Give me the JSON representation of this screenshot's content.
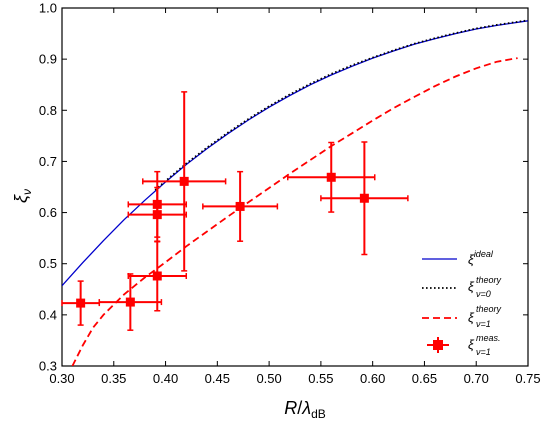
{
  "chart_data": {
    "type": "line",
    "xlabel": "R/λdB",
    "xlabel_main": "R",
    "xlabel_sep": "/",
    "xlabel_lambda": "λ",
    "xlabel_sub": "dB",
    "ylabel": "ξν",
    "ylabel_main": "ξ",
    "ylabel_sub": "ν",
    "xlim": [
      0.3,
      0.75
    ],
    "ylim": [
      0.3,
      1.0
    ],
    "x_ticks": [
      "0.30",
      "0.35",
      "0.40",
      "0.45",
      "0.50",
      "0.55",
      "0.60",
      "0.65",
      "0.70",
      "0.75"
    ],
    "y_ticks": [
      "0.3",
      "0.4",
      "0.5",
      "0.6",
      "0.7",
      "0.8",
      "0.9",
      "1.0"
    ],
    "grid": false,
    "legend_position": "bottom-right",
    "colors": {
      "ideal": "#0000cc",
      "theory_nu0": "#000000",
      "theory_nu1": "#ff0000",
      "measured": "#ff0000"
    },
    "series": [
      {
        "name": "ξ ideal",
        "legend_main": "ξ",
        "legend_sup": "ideal",
        "legend_sub": "",
        "style": "solid",
        "x": [
          0.3,
          0.32,
          0.34,
          0.36,
          0.38,
          0.4,
          0.42,
          0.44,
          0.46,
          0.48,
          0.5,
          0.52,
          0.54,
          0.56,
          0.58,
          0.6,
          0.62,
          0.64,
          0.66,
          0.68,
          0.7,
          0.72,
          0.75
        ],
        "y": [
          0.457,
          0.502,
          0.545,
          0.586,
          0.624,
          0.66,
          0.694,
          0.725,
          0.754,
          0.781,
          0.806,
          0.829,
          0.85,
          0.869,
          0.886,
          0.902,
          0.916,
          0.929,
          0.94,
          0.95,
          0.959,
          0.966,
          0.975
        ]
      },
      {
        "name": "ξ theory ν=0",
        "legend_main": "ξ",
        "legend_sup": "theory",
        "legend_sub": "ν=0",
        "style": "dotted",
        "x": [
          0.39,
          0.4,
          0.42,
          0.44,
          0.46,
          0.48,
          0.5,
          0.52,
          0.54,
          0.56,
          0.58,
          0.6,
          0.62,
          0.64,
          0.66,
          0.68,
          0.7,
          0.72,
          0.75
        ],
        "y": [
          0.644,
          0.662,
          0.696,
          0.727,
          0.756,
          0.783,
          0.808,
          0.831,
          0.852,
          0.871,
          0.888,
          0.903,
          0.917,
          0.93,
          0.941,
          0.951,
          0.96,
          0.967,
          0.976
        ]
      },
      {
        "name": "ξ theory ν=1",
        "legend_main": "ξ",
        "legend_sup": "theory",
        "legend_sub": "ν=1",
        "style": "dashed",
        "x": [
          0.31,
          0.32,
          0.33,
          0.34,
          0.36,
          0.38,
          0.4,
          0.42,
          0.44,
          0.46,
          0.48,
          0.5,
          0.52,
          0.54,
          0.56,
          0.58,
          0.6,
          0.62,
          0.64,
          0.66,
          0.68,
          0.7,
          0.72,
          0.74
        ],
        "y": [
          0.3,
          0.34,
          0.375,
          0.4,
          0.44,
          0.473,
          0.503,
          0.534,
          0.563,
          0.592,
          0.62,
          0.648,
          0.676,
          0.703,
          0.73,
          0.755,
          0.78,
          0.804,
          0.826,
          0.847,
          0.866,
          0.882,
          0.895,
          0.902
        ]
      }
    ],
    "measured": {
      "name": "ξ meas. ν=1",
      "legend_main": "ξ",
      "legend_sup": "meas.",
      "legend_sub": "ν=1",
      "points": [
        {
          "x": 0.318,
          "y": 0.423,
          "xerr": 0.018,
          "yerr": 0.043
        },
        {
          "x": 0.366,
          "y": 0.425,
          "xerr": 0.03,
          "yerr": 0.055
        },
        {
          "x": 0.392,
          "y": 0.476,
          "xerr": 0.028,
          "yerr": 0.068
        },
        {
          "x": 0.392,
          "y": 0.596,
          "xerr": 0.028,
          "yerr": 0.053
        },
        {
          "x": 0.392,
          "y": 0.616,
          "xerr": 0.028,
          "yerr": 0.064
        },
        {
          "x": 0.418,
          "y": 0.661,
          "xerr": 0.04,
          "yerr": 0.175
        },
        {
          "x": 0.472,
          "y": 0.612,
          "xerr": 0.036,
          "yerr": 0.068
        },
        {
          "x": 0.56,
          "y": 0.669,
          "xerr": 0.042,
          "yerr": 0.068
        },
        {
          "x": 0.592,
          "y": 0.628,
          "xerr": 0.042,
          "yerr": 0.11
        }
      ]
    }
  }
}
